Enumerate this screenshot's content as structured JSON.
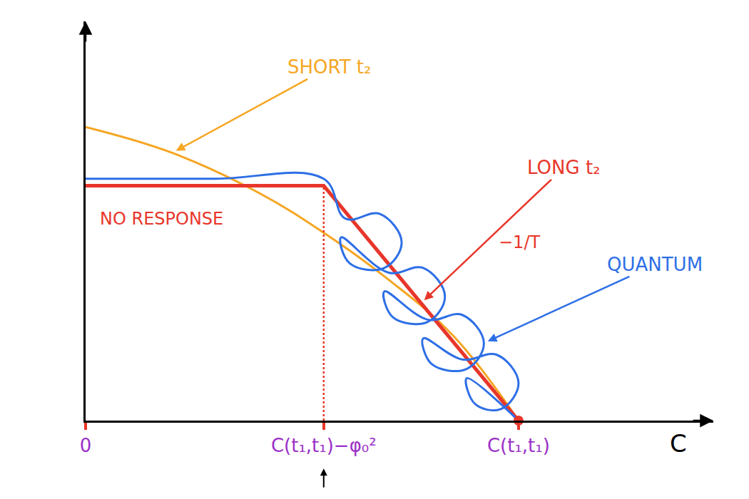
{
  "chart_data": {
    "type": "line",
    "xlabel": "C",
    "xlim": [
      0,
      1.45
    ],
    "ylim": [
      0,
      1.7
    ],
    "xticks": [
      0,
      {
        "value": 0.55,
        "label": "C(t₁,t₁)−φ₀²"
      },
      {
        "value": 1,
        "label": "C(t₁,t₁)"
      }
    ],
    "yticks": [],
    "tick_labels": "x",
    "grid": false,
    "series": [
      {
        "name": "SHORT t₂",
        "color": "#f5a623",
        "line_style": "smooth",
        "x": [
          0,
          0.2,
          0.4,
          0.55,
          0.7,
          0.85,
          1
        ],
        "values": [
          1.25,
          1.14,
          0.97,
          0.8,
          0.6,
          0.36,
          0
        ]
      },
      {
        "name": "LONG t₂",
        "color": "#e8362a",
        "line_style": "solid",
        "x": [
          0,
          0.55,
          1
        ],
        "values": [
          1.0,
          1.0,
          0
        ]
      },
      {
        "name": "QUANTUM",
        "color": "#2e6fe6",
        "line_style": "smooth",
        "x": [
          0,
          0.3,
          0.55,
          0.6,
          0.68,
          0.73,
          0.69,
          0.61,
          0.59,
          0.7,
          0.78,
          0.83,
          0.79,
          0.71,
          0.69,
          0.79,
          0.87,
          0.92,
          0.88,
          0.8,
          0.78,
          0.87,
          0.95,
          1.0,
          0.96,
          0.9,
          0.88,
          1
        ],
        "values": [
          1.03,
          1.03,
          1.03,
          0.86,
          0.88,
          0.76,
          0.65,
          0.67,
          0.78,
          0.63,
          0.65,
          0.53,
          0.42,
          0.44,
          0.55,
          0.43,
          0.45,
          0.33,
          0.22,
          0.24,
          0.35,
          0.26,
          0.28,
          0.16,
          0.05,
          0.07,
          0.18,
          0
        ]
      }
    ],
    "annotations": [
      {
        "text": "NO RESPONSE",
        "color": "#e8362a"
      },
      {
        "text": "−1/T",
        "color": "#e8362a"
      }
    ]
  }
}
